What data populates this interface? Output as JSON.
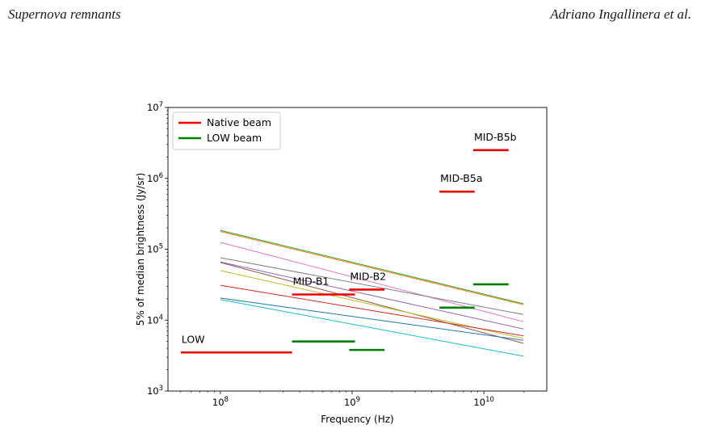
{
  "header": {
    "left": "Supernova remnants",
    "right": "Adriano Ingallinera et al."
  },
  "chart_data": {
    "type": "line",
    "xlabel": "Frequency (Hz)",
    "ylabel": "5% of median brightness (Jy/sr)",
    "xscale": "log",
    "yscale": "log",
    "xlim": [
      40000000,
      30000000000
    ],
    "ylim": [
      1000,
      10000000
    ],
    "x_ticks": [
      {
        "value": 100000000,
        "base": "10",
        "exp": "8"
      },
      {
        "value": 1000000000,
        "base": "10",
        "exp": "9"
      },
      {
        "value": 10000000000,
        "base": "10",
        "exp": "10"
      }
    ],
    "y_ticks": [
      {
        "value": 1000,
        "base": "10",
        "exp": "3"
      },
      {
        "value": 10000,
        "base": "10",
        "exp": "4"
      },
      {
        "value": 100000,
        "base": "10",
        "exp": "5"
      },
      {
        "value": 1000000,
        "base": "10",
        "exp": "6"
      },
      {
        "value": 10000000,
        "base": "10",
        "exp": "7"
      }
    ],
    "legend": {
      "placement": "top-left",
      "entries": [
        {
          "label": "Native beam",
          "color": "#ee0000"
        },
        {
          "label": "LOW beam",
          "color": "#008000"
        }
      ]
    },
    "series": [
      {
        "color": "#2ca02c",
        "x": [
          100000000,
          20000000000
        ],
        "y": [
          185000,
          17000
        ]
      },
      {
        "color": "#ff7f0e",
        "x": [
          100000000,
          20000000000
        ],
        "y": [
          178000,
          16500
        ]
      },
      {
        "color": "#e377c2",
        "x": [
          100000000,
          20000000000
        ],
        "y": [
          125000,
          9500
        ]
      },
      {
        "color": "#7f7f7f",
        "x": [
          100000000,
          20000000000
        ],
        "y": [
          76000,
          12000
        ]
      },
      {
        "color": "#9467bd",
        "x": [
          100000000,
          20000000000
        ],
        "y": [
          66000,
          7500
        ]
      },
      {
        "color": "#8c564b",
        "x": [
          100000000,
          20000000000
        ],
        "y": [
          65000,
          4700
        ]
      },
      {
        "color": "#bcbd22",
        "x": [
          100000000,
          20000000000
        ],
        "y": [
          50000,
          5500
        ]
      },
      {
        "color": "#d62728",
        "x": [
          100000000,
          20000000000
        ],
        "y": [
          31000,
          6000
        ]
      },
      {
        "color": "#1f77b4",
        "x": [
          100000000,
          20000000000
        ],
        "y": [
          20500,
          5200
        ]
      },
      {
        "color": "#17becf",
        "x": [
          100000000,
          20000000000
        ],
        "y": [
          19500,
          3100
        ]
      }
    ],
    "bands": [
      {
        "label": "LOW",
        "beam": "Native beam",
        "x_range": [
          50000000,
          350000000
        ],
        "y": 3500
      },
      {
        "label": "MID-B1",
        "beam": "Native beam",
        "x_range": [
          350000000,
          1050000000
        ],
        "y": 23000
      },
      {
        "label": "MID-B2",
        "beam": "Native beam",
        "x_range": [
          950000000,
          1760000000
        ],
        "y": 27000
      },
      {
        "label": "MID-B5a",
        "beam": "Native beam",
        "x_range": [
          4600000000,
          8500000000
        ],
        "y": 650000
      },
      {
        "label": "MID-B5b",
        "beam": "Native beam",
        "x_range": [
          8300000000,
          15400000000
        ],
        "y": 2500000
      },
      {
        "label": "",
        "beam": "LOW beam",
        "x_range": [
          350000000,
          1050000000
        ],
        "y": 5000
      },
      {
        "label": "",
        "beam": "LOW beam",
        "x_range": [
          950000000,
          1760000000
        ],
        "y": 3800
      },
      {
        "label": "",
        "beam": "LOW beam",
        "x_range": [
          4600000000,
          8500000000
        ],
        "y": 15000
      },
      {
        "label": "",
        "beam": "LOW beam",
        "x_range": [
          8300000000,
          15400000000
        ],
        "y": 32000
      }
    ]
  }
}
